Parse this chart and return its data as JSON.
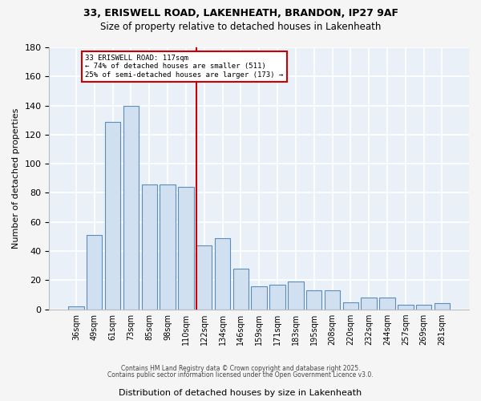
{
  "title_line1": "33, ERISWELL ROAD, LAKENHEATH, BRANDON, IP27 9AF",
  "title_line2": "Size of property relative to detached houses in Lakenheath",
  "xlabel": "Distribution of detached houses by size in Lakenheath",
  "ylabel": "Number of detached properties",
  "categories": [
    "36sqm",
    "49sqm",
    "61sqm",
    "73sqm",
    "85sqm",
    "98sqm",
    "110sqm",
    "122sqm",
    "134sqm",
    "146sqm",
    "159sqm",
    "171sqm",
    "183sqm",
    "195sqm",
    "208sqm",
    "220sqm",
    "232sqm",
    "244sqm",
    "257sqm",
    "269sqm",
    "281sqm"
  ],
  "values": [
    2,
    51,
    129,
    140,
    86,
    86,
    84,
    44,
    49,
    28,
    16,
    17,
    19,
    13,
    13,
    5,
    8,
    8,
    3,
    3,
    4
  ],
  "bar_color": "#d0e0f0",
  "bar_edge_color": "#5b8db8",
  "background_color": "#eaf0f8",
  "grid_color": "#d8e4f0",
  "vline_color": "#cc0000",
  "annotation_text": "33 ERISWELL ROAD: 117sqm\n← 74% of detached houses are smaller (511)\n25% of semi-detached houses are larger (173) →",
  "annotation_box_color": "white",
  "annotation_box_edge": "#cc0000",
  "footnote1": "Contains HM Land Registry data © Crown copyright and database right 2025.",
  "footnote2": "Contains public sector information licensed under the Open Government Licence v3.0.",
  "ylim": [
    0,
    180
  ],
  "yticks": [
    0,
    20,
    40,
    60,
    80,
    100,
    120,
    140,
    160,
    180
  ],
  "fig_bg": "#f5f5f5"
}
